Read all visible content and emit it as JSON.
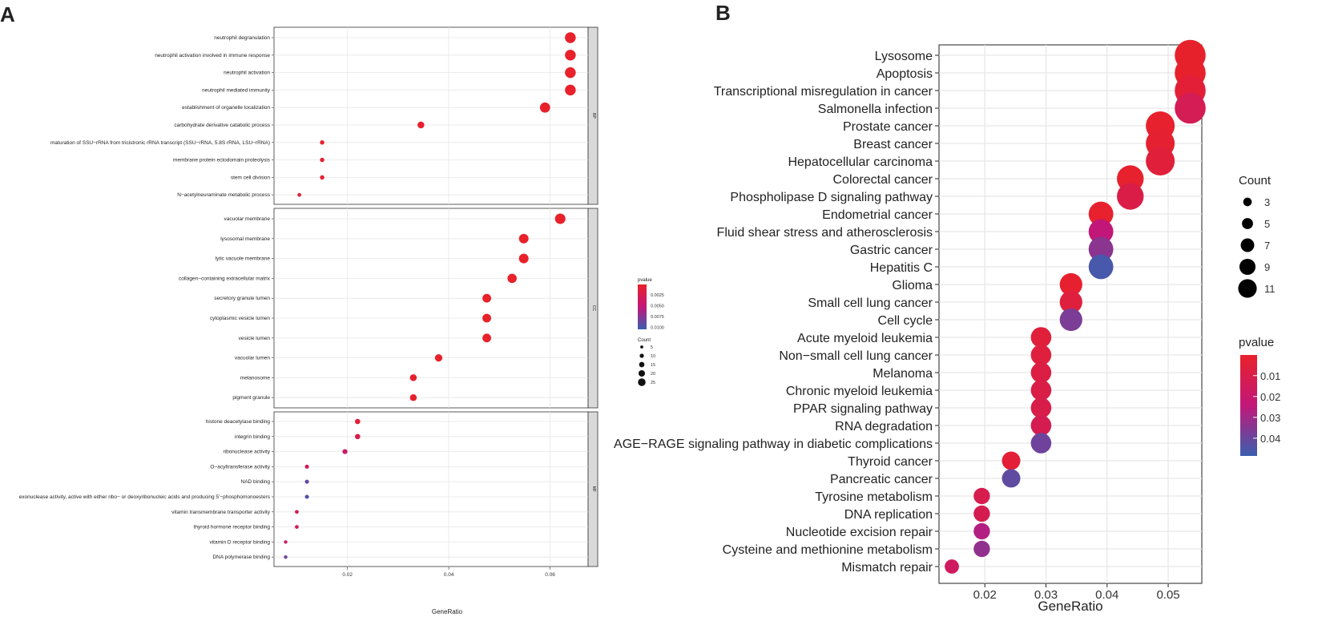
{
  "panel_a_letter": "A",
  "panel_b_letter": "B",
  "chart_data": [
    {
      "panel": "A",
      "type": "scatter",
      "title": "",
      "xlabel": "GeneRatio",
      "ylabel": "",
      "xlim": [
        0.0055,
        0.0675
      ],
      "xticks": [
        0.02,
        0.04,
        0.06
      ],
      "xtick_labels": [
        "0.02",
        "0.04",
        "0.06"
      ],
      "grid": true,
      "facets": [
        {
          "name": "BP",
          "terms": [
            {
              "term": "neutrophil degranulation",
              "x": 0.064,
              "count": 27,
              "pvalue": 0.0001
            },
            {
              "term": "neutrophil activation involved in immune response",
              "x": 0.064,
              "count": 27,
              "pvalue": 0.0001
            },
            {
              "term": "neutrophil activation",
              "x": 0.064,
              "count": 27,
              "pvalue": 0.0001
            },
            {
              "term": "neutrophil mediated immunity",
              "x": 0.064,
              "count": 27,
              "pvalue": 0.0001
            },
            {
              "term": "establishment of organelle localization",
              "x": 0.059,
              "count": 25,
              "pvalue": 0.0002
            },
            {
              "term": "carbohydrate derivative catabolic process",
              "x": 0.0345,
              "count": 14,
              "pvalue": 0.0003
            },
            {
              "term": "maturation of SSU−rRNA from tricistronic rRNA transcript (SSU−rRNA, 5.8S rRNA, LSU−rRNA)",
              "x": 0.015,
              "count": 6,
              "pvalue": 0.0003
            },
            {
              "term": "membrane protein ectodomain proteolysis",
              "x": 0.015,
              "count": 6,
              "pvalue": 0.0004
            },
            {
              "term": "stem cell division",
              "x": 0.015,
              "count": 6,
              "pvalue": 0.0004
            },
            {
              "term": "N−acetylneuraminate metabolic process",
              "x": 0.0105,
              "count": 4,
              "pvalue": 0.0005
            }
          ]
        },
        {
          "name": "CC",
          "terms": [
            {
              "term": "vacuolar membrane",
              "x": 0.062,
              "count": 26,
              "pvalue": 0.0001
            },
            {
              "term": "lysosomal membrane",
              "x": 0.0548,
              "count": 23,
              "pvalue": 0.0001
            },
            {
              "term": "lytic vacuole membrane",
              "x": 0.0548,
              "count": 23,
              "pvalue": 0.0001
            },
            {
              "term": "collagen−containing extracellular matrix",
              "x": 0.0525,
              "count": 22,
              "pvalue": 0.0001
            },
            {
              "term": "secretory granule lumen",
              "x": 0.0475,
              "count": 20,
              "pvalue": 0.0001
            },
            {
              "term": "cytoplasmic vesicle lumen",
              "x": 0.0475,
              "count": 20,
              "pvalue": 0.0001
            },
            {
              "term": "vesicle lumen",
              "x": 0.0475,
              "count": 20,
              "pvalue": 0.0001
            },
            {
              "term": "vacuolar lumen",
              "x": 0.038,
              "count": 16,
              "pvalue": 0.0002
            },
            {
              "term": "melanosome",
              "x": 0.033,
              "count": 14,
              "pvalue": 0.0002
            },
            {
              "term": "pigment granule",
              "x": 0.033,
              "count": 14,
              "pvalue": 0.0002
            }
          ]
        },
        {
          "name": "MF",
          "terms": [
            {
              "term": "histone deacetylase binding",
              "x": 0.022,
              "count": 9,
              "pvalue": 0.001
            },
            {
              "term": "integrin binding",
              "x": 0.022,
              "count": 9,
              "pvalue": 0.002
            },
            {
              "term": "ribonuclease activity",
              "x": 0.0195,
              "count": 8,
              "pvalue": 0.004
            },
            {
              "term": "O−acyltransferase activity",
              "x": 0.012,
              "count": 5,
              "pvalue": 0.003
            },
            {
              "term": "NAD binding",
              "x": 0.012,
              "count": 5,
              "pvalue": 0.009
            },
            {
              "term": "exonuclease activity, active with either ribo− or deoxyribonucleic acids and producing 5'−phosphomonoesters",
              "x": 0.012,
              "count": 5,
              "pvalue": 0.0095
            },
            {
              "term": "vitamin transmembrane transporter activity",
              "x": 0.01,
              "count": 4,
              "pvalue": 0.0025
            },
            {
              "term": "thyroid hormone receptor binding",
              "x": 0.01,
              "count": 4,
              "pvalue": 0.003
            },
            {
              "term": "vitamin D receptor binding",
              "x": 0.0078,
              "count": 3,
              "pvalue": 0.004
            },
            {
              "term": "DNA polymerase binding",
              "x": 0.0078,
              "count": 3,
              "pvalue": 0.0085
            }
          ]
        }
      ],
      "legend_pvalue": {
        "title": "pvalue",
        "range": [
          0.0001,
          0.0105
        ],
        "ticks": [
          0.0025,
          0.005,
          0.0075,
          0.01
        ],
        "tick_labels": [
          "0.0025",
          "0.0050",
          "0.0075",
          "0.0100"
        ],
        "color_low": "#e8212a",
        "color_mid": "#c2177a",
        "color_high": "#3a5fb0"
      },
      "legend_count": {
        "title": "Count",
        "values": [
          5,
          10,
          15,
          20,
          25
        ],
        "labels": [
          "5",
          "10",
          "15",
          "20",
          "25"
        ]
      }
    },
    {
      "panel": "B",
      "type": "scatter",
      "title": "",
      "xlabel": "GeneRatio",
      "ylabel": "",
      "xlim": [
        0.0125,
        0.0555
      ],
      "xticks": [
        0.02,
        0.03,
        0.04,
        0.05
      ],
      "xtick_labels": [
        "0.02",
        "0.03",
        "0.04",
        "0.05"
      ],
      "grid": true,
      "terms": [
        {
          "term": "Lysosome",
          "x": 0.0536,
          "count": 11,
          "pvalue": 0.0005
        },
        {
          "term": "Apoptosis",
          "x": 0.0536,
          "count": 11,
          "pvalue": 0.0008
        },
        {
          "term": "Transcriptional misregulation in cancer",
          "x": 0.0536,
          "count": 11,
          "pvalue": 0.004
        },
        {
          "term": "Salmonella infection",
          "x": 0.0536,
          "count": 11,
          "pvalue": 0.013
        },
        {
          "term": "Prostate cancer",
          "x": 0.0487,
          "count": 10,
          "pvalue": 0.001
        },
        {
          "term": "Breast cancer",
          "x": 0.0487,
          "count": 10,
          "pvalue": 0.002
        },
        {
          "term": "Hepatocellular carcinoma",
          "x": 0.0487,
          "count": 10,
          "pvalue": 0.005
        },
        {
          "term": "Colorectal cancer",
          "x": 0.0438,
          "count": 9,
          "pvalue": 0.001
        },
        {
          "term": "Phospholipase D signaling pathway",
          "x": 0.0438,
          "count": 9,
          "pvalue": 0.009
        },
        {
          "term": "Endometrial cancer",
          "x": 0.039,
          "count": 8,
          "pvalue": 0.001
        },
        {
          "term": "Fluid shear stress and atherosclerosis",
          "x": 0.039,
          "count": 8,
          "pvalue": 0.024
        },
        {
          "term": "Gastric cancer",
          "x": 0.039,
          "count": 8,
          "pvalue": 0.034
        },
        {
          "term": "Hepatitis C",
          "x": 0.039,
          "count": 8,
          "pvalue": 0.046
        },
        {
          "term": "Glioma",
          "x": 0.0341,
          "count": 7,
          "pvalue": 0.0015
        },
        {
          "term": "Small cell lung cancer",
          "x": 0.0341,
          "count": 7,
          "pvalue": 0.006
        },
        {
          "term": "Cell cycle",
          "x": 0.0341,
          "count": 7,
          "pvalue": 0.037
        },
        {
          "term": "Acute myeloid leukemia",
          "x": 0.0292,
          "count": 6,
          "pvalue": 0.005
        },
        {
          "term": "Non−small cell lung cancer",
          "x": 0.0292,
          "count": 6,
          "pvalue": 0.006
        },
        {
          "term": "Melanoma",
          "x": 0.0292,
          "count": 6,
          "pvalue": 0.008
        },
        {
          "term": "Chronic myeloid leukemia",
          "x": 0.0292,
          "count": 6,
          "pvalue": 0.009
        },
        {
          "term": "PPAR signaling pathway",
          "x": 0.0292,
          "count": 6,
          "pvalue": 0.01
        },
        {
          "term": "RNA degradation",
          "x": 0.0292,
          "count": 6,
          "pvalue": 0.012
        },
        {
          "term": "AGE−RAGE signaling pathway in diabetic complications",
          "x": 0.0292,
          "count": 6,
          "pvalue": 0.039
        },
        {
          "term": "Thyroid cancer",
          "x": 0.0243,
          "count": 5,
          "pvalue": 0.004
        },
        {
          "term": "Pancreatic cancer",
          "x": 0.0243,
          "count": 5,
          "pvalue": 0.042
        },
        {
          "term": "Tyrosine metabolism",
          "x": 0.0195,
          "count": 4,
          "pvalue": 0.011
        },
        {
          "term": "DNA replication",
          "x": 0.0195,
          "count": 4,
          "pvalue": 0.012
        },
        {
          "term": "Nucleotide excision repair",
          "x": 0.0195,
          "count": 4,
          "pvalue": 0.027
        },
        {
          "term": "Cysteine and methionine metabolism",
          "x": 0.0195,
          "count": 4,
          "pvalue": 0.033
        },
        {
          "term": "Mismatch repair",
          "x": 0.0146,
          "count": 3,
          "pvalue": 0.016
        }
      ],
      "legend_count": {
        "title": "Count",
        "values": [
          3,
          5,
          7,
          9,
          11
        ],
        "labels": [
          "3",
          "5",
          "7",
          "9",
          "11"
        ]
      },
      "legend_pvalue": {
        "title": "pvalue",
        "range": [
          0.0001,
          0.0485
        ],
        "ticks": [
          0.01,
          0.02,
          0.03,
          0.04
        ],
        "tick_labels": [
          "0.01",
          "0.02",
          "0.03",
          "0.04"
        ],
        "color_low": "#e8212a",
        "color_mid": "#c2177a",
        "color_high": "#3a5fb0"
      }
    }
  ]
}
